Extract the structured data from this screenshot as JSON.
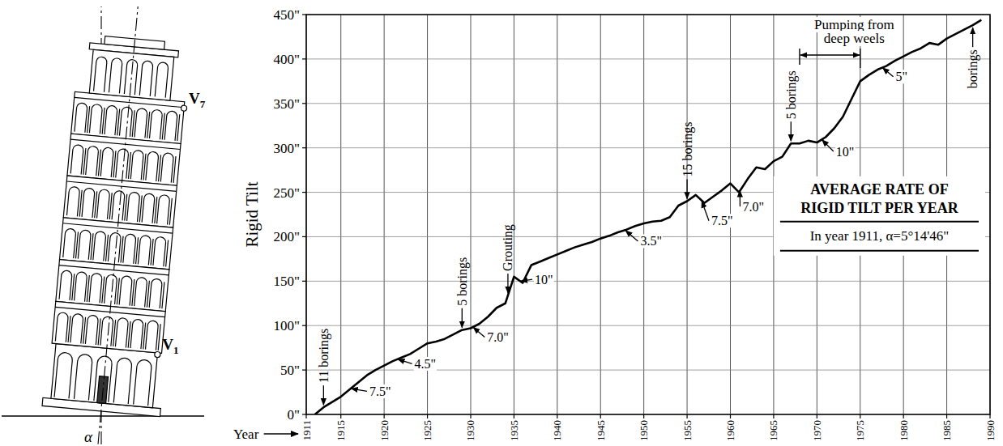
{
  "chart_data": {
    "type": "line",
    "ylabel": "Rigid Tilt",
    "xlabel": "Year",
    "x": [
      1912,
      1913,
      1914,
      1915,
      1916,
      1917,
      1918,
      1919,
      1920,
      1921,
      1922,
      1923,
      1924,
      1925,
      1926,
      1927,
      1928,
      1929,
      1930,
      1931,
      1932,
      1933,
      1934,
      1935,
      1936,
      1937,
      1938,
      1939,
      1940,
      1941,
      1942,
      1943,
      1944,
      1945,
      1946,
      1947,
      1948,
      1949,
      1950,
      1951,
      1952,
      1953,
      1954,
      1955,
      1956,
      1957,
      1958,
      1959,
      1960,
      1961,
      1962,
      1963,
      1964,
      1965,
      1966,
      1967,
      1968,
      1969,
      1970,
      1971,
      1972,
      1973,
      1974,
      1975,
      1976,
      1977,
      1978,
      1979,
      1980,
      1981,
      1982,
      1983,
      1984,
      1985,
      1986,
      1987,
      1988,
      1989
    ],
    "values": [
      0,
      8,
      14,
      20,
      28,
      36,
      44,
      50,
      55,
      60,
      64,
      68,
      74,
      80,
      82,
      85,
      90,
      95,
      97,
      102,
      110,
      120,
      125,
      155,
      148,
      168,
      172,
      176,
      180,
      184,
      188,
      191,
      194,
      198,
      201,
      205,
      208,
      212,
      215,
      217,
      218,
      222,
      235,
      240,
      247,
      238,
      245,
      252,
      260,
      250,
      265,
      278,
      276,
      285,
      290,
      305,
      305,
      308,
      306,
      312,
      322,
      335,
      355,
      375,
      382,
      388,
      392,
      398,
      403,
      408,
      412,
      418,
      416,
      423,
      428,
      433,
      438,
      444
    ],
    "color": "#000000",
    "grid": true,
    "xlim": [
      1911,
      1990
    ],
    "xticks": [
      1911,
      1915,
      1920,
      1925,
      1930,
      1935,
      1940,
      1945,
      1950,
      1955,
      1960,
      1965,
      1970,
      1975,
      1980,
      1985,
      1990
    ],
    "ylim": [
      0,
      450
    ],
    "yticks": [
      {
        "value": 0,
        "label": "0\""
      },
      {
        "value": 50,
        "label": "50\""
      },
      {
        "value": 100,
        "label": "100\""
      },
      {
        "value": 150,
        "label": "150\""
      },
      {
        "value": 200,
        "label": "200\""
      },
      {
        "value": 250,
        "label": "250\""
      },
      {
        "value": 300,
        "label": "300\""
      },
      {
        "value": 350,
        "label": "350\""
      },
      {
        "value": 400,
        "label": "400\""
      },
      {
        "value": 450,
        "label": "450\""
      }
    ],
    "annotations": [
      {
        "text": "11 borings",
        "x": 1913
      },
      {
        "text": "5 borings",
        "x": 1929
      },
      {
        "text": "Grouting",
        "x": 1934.3
      },
      {
        "text": "15 borings",
        "x": 1955
      },
      {
        "text": "5 borings",
        "x": 1967
      },
      {
        "text": "borings",
        "x": 1988
      }
    ],
    "pumping": {
      "lines": [
        "Pumping from",
        "deep weels"
      ],
      "x": [
        1968,
        1975
      ]
    },
    "rate_heading": [
      "AVERAGE RATE OF",
      "RIGID TILT PER YEAR"
    ],
    "note": "In year 1911, α=5°14'46\"",
    "rate_labels": [
      {
        "text": "7.5\"",
        "x": 1918.3,
        "y": 26,
        "tx": 1916.2,
        "ty": 29
      },
      {
        "text": "4.5\"",
        "x": 1923.5,
        "y": 57,
        "tx": 1921.6,
        "ty": 62
      },
      {
        "text": "7.0\"",
        "x": 1931.9,
        "y": 87,
        "tx": 1930.3,
        "ty": 98
      },
      {
        "text": "10\"",
        "x": 1937.4,
        "y": 152,
        "tx": 1935.8,
        "ty": 150
      },
      {
        "text": "3.5\"",
        "x": 1949.6,
        "y": 195,
        "tx": 1947.9,
        "ty": 207
      },
      {
        "text": "7.5\"",
        "x": 1957.8,
        "y": 218,
        "tx": 1956.7,
        "ty": 240
      },
      {
        "text": "7.0\"",
        "x": 1961.4,
        "y": 234,
        "tx": 1961.1,
        "ty": 252
      },
      {
        "text": "10\"",
        "x": 1972.2,
        "y": 296,
        "tx": 1970.6,
        "ty": 309
      },
      {
        "text": "5\"",
        "x": 1979.1,
        "y": 380,
        "tx": 1977.6,
        "ty": 390
      }
    ]
  },
  "tower": {
    "top": "V7",
    "bottom": "V1",
    "angle": "α"
  }
}
